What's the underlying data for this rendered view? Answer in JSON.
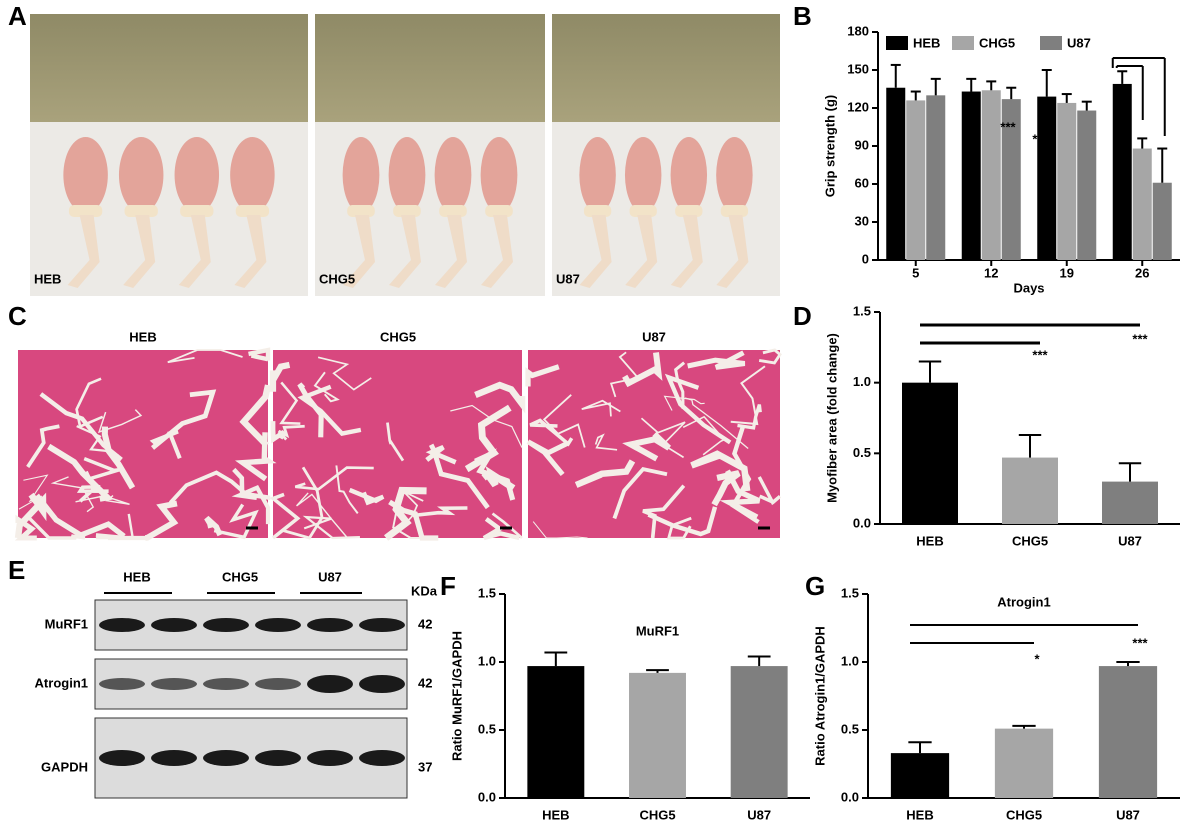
{
  "panel_letters": [
    "A",
    "B",
    "C",
    "D",
    "E",
    "F",
    "G"
  ],
  "photo_labels": {
    "A": [
      "HEB",
      "CHG5",
      "U87"
    ],
    "C": [
      "HEB",
      "CHG5",
      "U87"
    ]
  },
  "blot": {
    "groups": [
      "HEB",
      "CHG5",
      "U87"
    ],
    "unit": "KDa",
    "proteins": [
      {
        "name": "MuRF1",
        "size": 42
      },
      {
        "name": "Atrogin1",
        "size": 42
      },
      {
        "name": "GAPDH",
        "size": 37
      }
    ]
  },
  "chart_data": [
    {
      "type": "grouped_bar",
      "y_label": "Grip strength (g)",
      "x_label": "Days",
      "categories": [
        "5",
        "12",
        "19",
        "26"
      ],
      "series": [
        {
          "name": "HEB",
          "color": "#000000",
          "values": [
            136,
            133,
            129,
            139
          ],
          "errors": [
            18,
            10,
            21,
            10
          ]
        },
        {
          "name": "CHG5",
          "color": "#a6a6a6",
          "values": [
            126,
            134,
            124,
            88
          ],
          "errors": [
            7,
            7,
            7,
            8
          ]
        },
        {
          "name": "U87",
          "color": "#7f7f7f",
          "values": [
            130,
            127,
            118,
            61
          ],
          "errors": [
            13,
            9,
            7,
            27
          ]
        }
      ],
      "ylim": [
        0,
        180
      ],
      "yticks": [
        0,
        30,
        60,
        90,
        120,
        150,
        180
      ],
      "legend": "top",
      "annotations": [
        "***",
        "***"
      ]
    },
    {
      "type": "bar",
      "y_label": "Myofiber area (fold change)",
      "categories": [
        "HEB",
        "CHG5",
        "U87"
      ],
      "values": [
        1.0,
        0.47,
        0.3
      ],
      "errors": [
        0.15,
        0.16,
        0.13
      ],
      "colors": [
        "#000000",
        "#a6a6a6",
        "#7f7f7f"
      ],
      "ylim": [
        0,
        1.5
      ],
      "yticks": [
        {
          "value": 0,
          "label": "0.0"
        },
        0.5,
        {
          "value": 1,
          "label": "1.0"
        },
        1.5
      ],
      "annotations": [
        "***",
        "***"
      ]
    },
    {
      "type": "bar",
      "title": "MuRF1",
      "y_label": "Ratio MuRF1/GAPDH",
      "categories": [
        "HEB",
        "CHG5",
        "U87"
      ],
      "values": [
        0.97,
        0.92,
        0.97
      ],
      "errors": [
        0.1,
        0.02,
        0.07
      ],
      "colors": [
        "#000000",
        "#a6a6a6",
        "#7f7f7f"
      ],
      "ylim": [
        0,
        1.5
      ],
      "yticks": [
        {
          "value": 0,
          "label": "0.0"
        },
        0.5,
        {
          "value": 1,
          "label": "1.0"
        },
        1.5
      ],
      "annotations": []
    },
    {
      "type": "bar",
      "title": "Atrogin1",
      "y_label": "Ratio Atrogin1/GAPDH",
      "categories": [
        "HEB",
        "CHG5",
        "U87"
      ],
      "values": [
        0.33,
        0.51,
        0.97
      ],
      "errors": [
        0.08,
        0.02,
        0.03
      ],
      "colors": [
        "#000000",
        "#a6a6a6",
        "#7f7f7f"
      ],
      "ylim": [
        0,
        1.5
      ],
      "yticks": [
        {
          "value": 0,
          "label": "0.0"
        },
        0.5,
        {
          "value": 1,
          "label": "1.0"
        },
        1.5
      ],
      "annotations": [
        "*",
        "***"
      ]
    }
  ]
}
